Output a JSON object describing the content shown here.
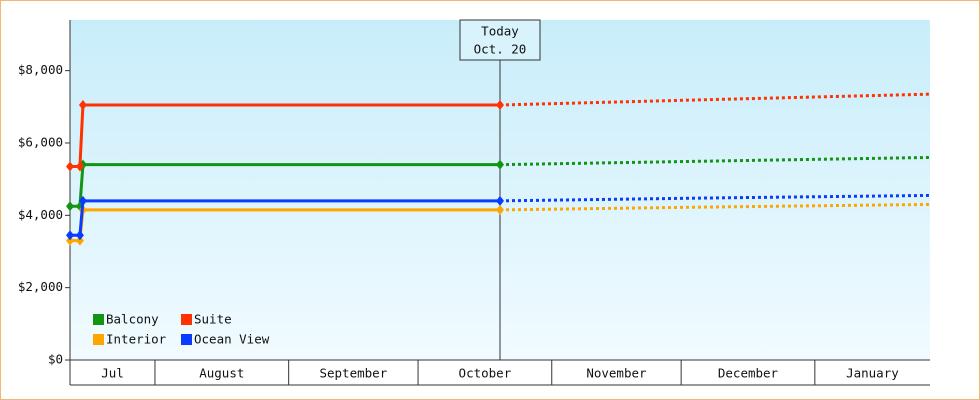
{
  "chart_data": {
    "type": "line",
    "x": [
      11.3,
      13.6,
      14.3,
      111,
      160,
      210.7
    ],
    "xlim": [
      11.3,
      210.7
    ],
    "xticks": [
      {
        "value": 0,
        "label": "Jul"
      },
      {
        "value": 31,
        "label": "August"
      },
      {
        "value": 62,
        "label": "September"
      },
      {
        "value": 92,
        "label": "October"
      },
      {
        "value": 123,
        "label": "November"
      },
      {
        "value": 153,
        "label": "December"
      },
      {
        "value": 184,
        "label": "January"
      }
    ],
    "ylim": [
      0,
      9400
    ],
    "yticks": [
      {
        "value": 0,
        "label": "$0"
      },
      {
        "value": 2000,
        "label": "$2,000"
      },
      {
        "value": 4000,
        "label": "$4,000"
      },
      {
        "value": 6000,
        "label": "$6,000"
      },
      {
        "value": 8000,
        "label": "$8,000"
      }
    ],
    "today": {
      "x": 111,
      "label": [
        "Today",
        "Oct. 20"
      ]
    },
    "series": [
      {
        "name": "Balcony",
        "color": "#139413",
        "values": [
          4250,
          4250,
          5400,
          5400,
          5500,
          5600
        ]
      },
      {
        "name": "Suite",
        "color": "#ff3300",
        "values": [
          5350,
          5350,
          7050,
          7050,
          7200,
          7350
        ]
      },
      {
        "name": "Interior",
        "color": "#ffa500",
        "values": [
          3300,
          3300,
          4150,
          4150,
          4230,
          4300
        ]
      },
      {
        "name": "Ocean View",
        "color": "#0a3cff",
        "values": [
          3450,
          3450,
          4400,
          4400,
          4480,
          4550
        ]
      }
    ]
  }
}
